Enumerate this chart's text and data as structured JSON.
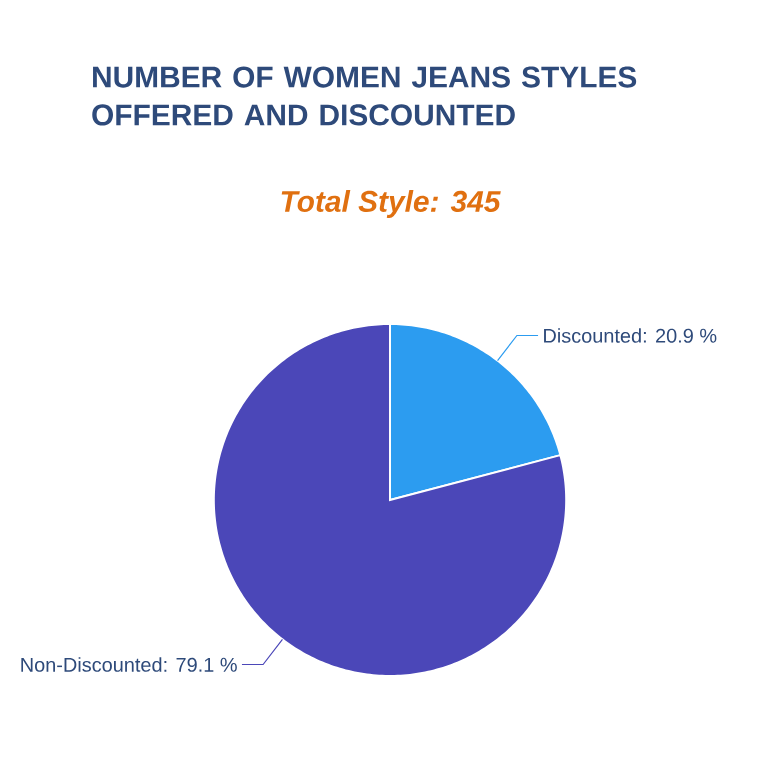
{
  "chart_data": {
    "type": "pie",
    "title": "NUMBER OF WOMEN JEANS STYLES OFFERED AND DISCOUNTED",
    "subtitle": "Total Style: 345",
    "categories": [
      "Discounted",
      "Non-Discounted"
    ],
    "values": [
      20.9,
      79.1
    ],
    "colors": [
      "#2c9cf0",
      "#4b47b8"
    ],
    "value_labels": [
      ": 20.9 %",
      ": 79.1 %"
    ]
  }
}
